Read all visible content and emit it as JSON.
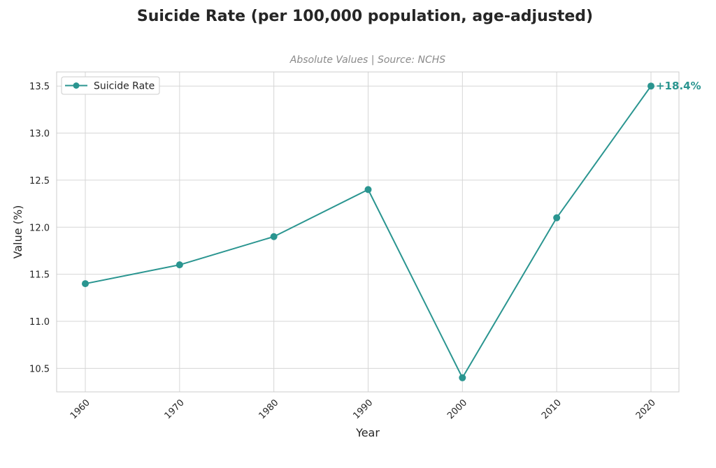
{
  "chart_data": {
    "type": "line",
    "title": "Suicide Rate (per 100,000 population, age-adjusted)",
    "subtitle": "Absolute Values | Source: NCHS",
    "xlabel": "Year",
    "ylabel": "Value (%)",
    "x": [
      "1960",
      "1970",
      "1980",
      "1990",
      "2000",
      "2010",
      "2020"
    ],
    "series": [
      {
        "name": "Suicide Rate",
        "values": [
          11.4,
          11.6,
          11.9,
          12.4,
          10.4,
          12.1,
          13.5
        ],
        "color": "#2a9590"
      }
    ],
    "ylim": [
      10.25,
      13.65
    ],
    "yticks": [
      "10.5",
      "11.0",
      "11.5",
      "12.0",
      "12.5",
      "13.0",
      "13.5"
    ],
    "grid": true,
    "legend_position": "top-left",
    "annotation": {
      "text": "+18.4%",
      "at": "2020"
    }
  }
}
